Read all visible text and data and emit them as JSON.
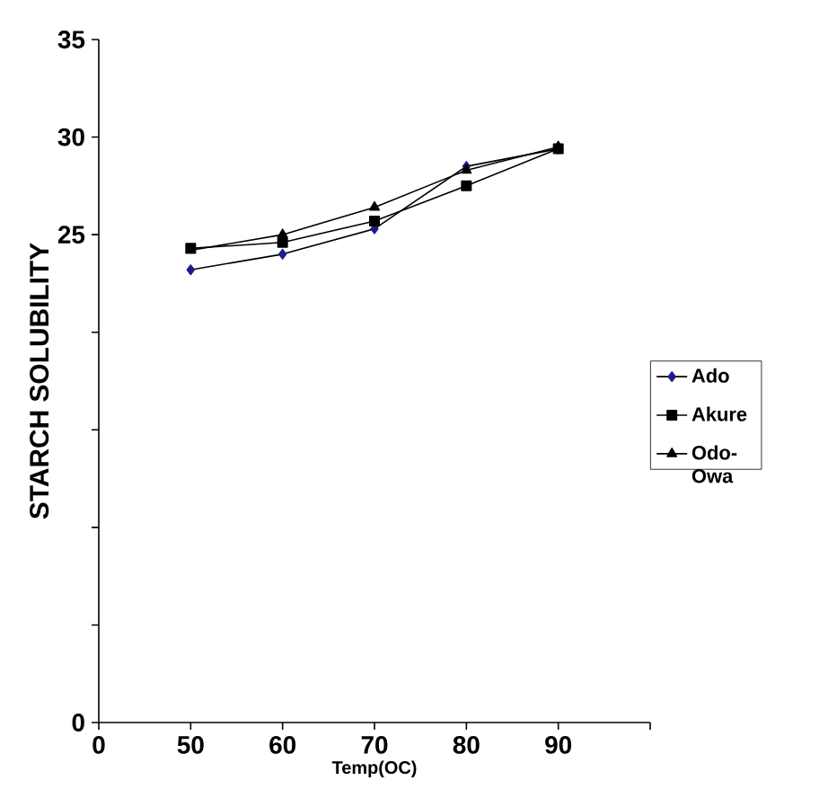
{
  "chart_data": {
    "type": "line",
    "xlabel": "Temp(OC)",
    "ylabel": "STARCH SOLUBILITY",
    "categories": [
      "0",
      "50",
      "60",
      "70",
      "80",
      "90",
      null
    ],
    "ylim": [
      0,
      35
    ],
    "yticks": [
      0,
      {
        "value": 5,
        "label": null
      },
      {
        "value": 10,
        "label": null
      },
      {
        "value": 15,
        "label": null
      },
      {
        "value": 20,
        "label": null
      },
      25,
      30,
      35
    ],
    "series": [
      {
        "name": "Ado",
        "color": "#1c1c8c",
        "marker": "diamond",
        "values": [
          null,
          23.2,
          24.0,
          25.3,
          28.5,
          29.4,
          null
        ]
      },
      {
        "name": "Akure",
        "color": "#000000",
        "marker": "square",
        "values": [
          null,
          24.3,
          24.6,
          25.7,
          27.5,
          29.4,
          null
        ]
      },
      {
        "name": "Odo-Owa",
        "color": "#000000",
        "marker": "triangle",
        "values": [
          null,
          24.2,
          25.0,
          26.4,
          28.3,
          29.5,
          null
        ]
      }
    ],
    "legend": "right",
    "grid": false,
    "line_style": "solid"
  }
}
